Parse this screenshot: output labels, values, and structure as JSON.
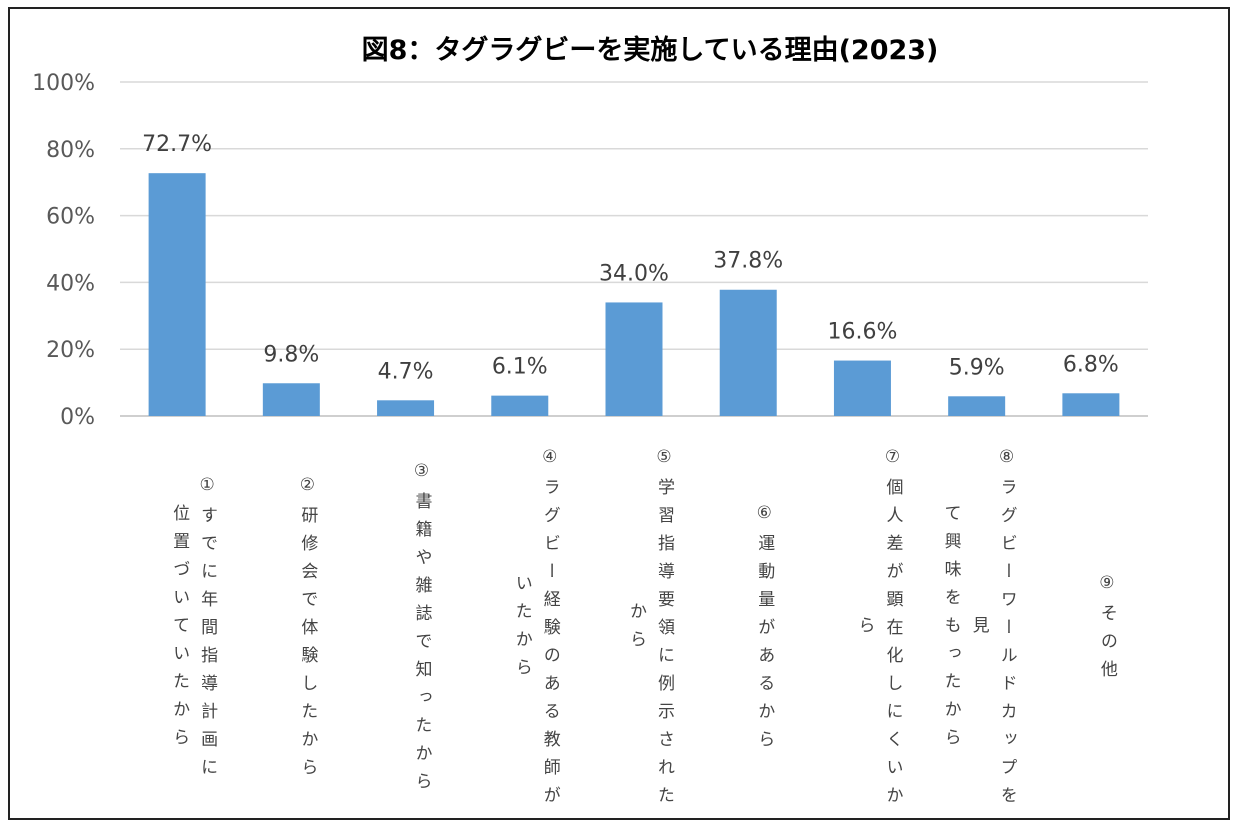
{
  "chart_data": {
    "type": "bar",
    "title": "図8：タグラグビーを実施している理由(2023)",
    "categories": [
      [
        "①すでに年間指導計画に",
        "位置づいていたから"
      ],
      [
        "②研修会で体験したから"
      ],
      [
        "③書籍や雑誌で知ったから"
      ],
      [
        "④ラグビー経験のある教師が",
        "いたから"
      ],
      [
        "⑤学習指導要領に例示された",
        "から"
      ],
      [
        "⑥運動量があるから"
      ],
      [
        "⑦個人差が顕在化しにくいか",
        "ら"
      ],
      [
        "⑧ラグビーワールドカップを見",
        "て興味をもったから"
      ],
      [
        "⑨その他"
      ]
    ],
    "values": [
      72.7,
      9.8,
      4.7,
      6.1,
      34.0,
      37.8,
      16.6,
      5.9,
      6.8
    ],
    "data_labels": [
      "72.7%",
      "9.8%",
      "4.7%",
      "6.1%",
      "34.0%",
      "37.8%",
      "16.6%",
      "5.9%",
      "6.8%"
    ],
    "ylim": [
      0,
      100
    ],
    "yticks": [
      "0%",
      "20%",
      "40%",
      "60%",
      "80%",
      "100%"
    ],
    "grid": true,
    "bar_color": "#5B9BD5",
    "xlabel": "",
    "ylabel": ""
  }
}
